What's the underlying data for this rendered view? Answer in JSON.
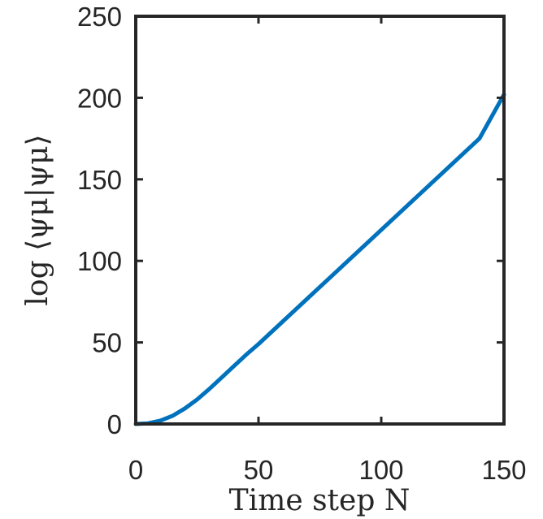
{
  "chart_data": {
    "type": "line",
    "xlabel": "Time step N",
    "ylabel": "log ⟨ψμ|ψμ⟩",
    "xlim": [
      0,
      150
    ],
    "ylim": [
      0,
      250
    ],
    "xticks": [
      0,
      50,
      100,
      150
    ],
    "yticks": [
      0,
      50,
      100,
      150,
      200,
      250
    ],
    "grid": false,
    "box": true,
    "series": [
      {
        "color": "#0072BD",
        "x": [
          0,
          5,
          10,
          15,
          20,
          25,
          30,
          35,
          40,
          45,
          50,
          60,
          70,
          80,
          90,
          100,
          110,
          120,
          130,
          140,
          150
        ],
        "y": [
          0,
          0.4,
          2,
          5,
          9.5,
          15,
          21.5,
          28.5,
          35.5,
          42.5,
          49,
          63,
          77,
          91,
          105,
          119,
          133,
          147,
          161,
          175,
          202
        ]
      }
    ]
  }
}
